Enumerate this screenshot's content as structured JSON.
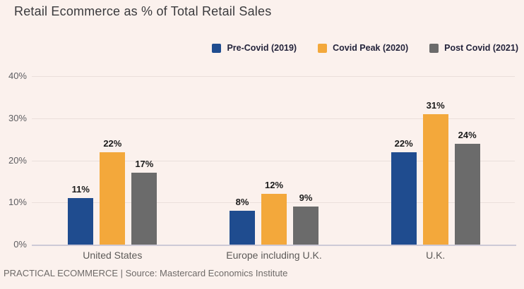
{
  "page": {
    "title": "Retail Ecommerce as % of Total Retail Sales",
    "footer": "PRACTICAL ECOMMERCE | Source: Mastercard Economics Institute"
  },
  "colors": {
    "background": "#FBF1ED",
    "title_text": "#3A3A3D",
    "legend_text": "#23233B",
    "axis_tick_text": "#5E5E62",
    "category_text": "#5C5A58",
    "data_label_text": "#1B1B1B",
    "footer_text": "#6E6A68",
    "gridline": "#EADFDB",
    "axis_line": "#CDC9D6"
  },
  "chart_data": {
    "type": "bar",
    "title": "Retail Ecommerce as % of Total Retail Sales",
    "categories": [
      "United States",
      "Europe including U.K.",
      "U.K."
    ],
    "series": [
      {
        "name": "Pre-Covid (2019)",
        "color": "#1F4C8F",
        "values": [
          11,
          8,
          22
        ]
      },
      {
        "name": "Covid Peak (2020)",
        "color": "#F3A83B",
        "values": [
          22,
          12,
          31
        ]
      },
      {
        "name": "Post Covid (2021)",
        "color": "#6B6B6B",
        "values": [
          17,
          9,
          24
        ]
      }
    ],
    "value_suffix": "%",
    "data_labels": [
      "11%",
      "22%",
      "17%",
      "8%",
      "12%",
      "9%",
      "22%",
      "31%",
      "24%"
    ],
    "xlabel": "",
    "ylabel": "",
    "ylim": [
      0,
      40
    ],
    "ytick_step": 10,
    "yticks": [
      "0%",
      "10%",
      "20%",
      "30%",
      "40%"
    ],
    "grid": true,
    "legend_position": "top-right",
    "source": "PRACTICAL ECOMMERCE | Source: Mastercard Economics Institute"
  }
}
